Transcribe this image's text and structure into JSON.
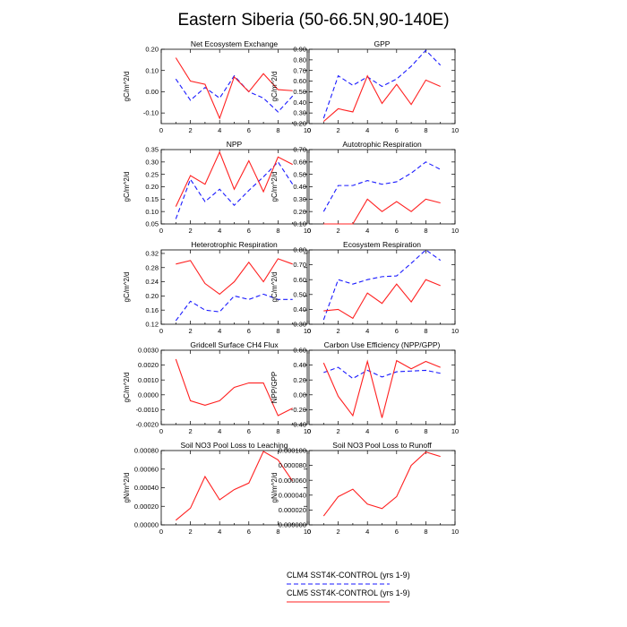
{
  "title": "Eastern Siberia (50-66.5N,90-140E)",
  "legend": [
    {
      "label": "CLM4 SST4K-CONTROL (yrs 1-9)",
      "color": "#1a1aff",
      "dash": true
    },
    {
      "label": "CLM5 SST4K-CONTROL (yrs 1-9)",
      "color": "#ff2020",
      "dash": false
    }
  ],
  "chart_data": [
    {
      "type": "line",
      "title": "Net Ecosystem Exchange",
      "ylabel": "gC/m^2/d",
      "xlim": [
        0,
        10
      ],
      "ylim": [
        -0.15,
        0.2
      ],
      "xticks": [
        "0",
        "2",
        "4",
        "6",
        "8",
        "10"
      ],
      "yticks": [
        {
          "v": -0.1,
          "t": "-0.10"
        },
        {
          "v": 0,
          "t": "0.00"
        },
        {
          "v": 0.1,
          "t": "0.10"
        },
        {
          "v": 0.2,
          "t": "0.20"
        }
      ],
      "x": [
        1,
        2,
        3,
        4,
        5,
        6,
        7,
        8,
        9
      ],
      "series": [
        {
          "name": "CLM4 SST4K-CONTROL (yrs 1-9)",
          "values": [
            0.06,
            -0.04,
            0.02,
            -0.03,
            0.075,
            0.0,
            -0.03,
            -0.095,
            -0.02
          ]
        },
        {
          "name": "CLM5 SST4K-CONTROL (yrs 1-9)",
          "values": [
            0.16,
            0.05,
            0.035,
            -0.125,
            0.07,
            0.0,
            0.085,
            0.01,
            0.005
          ]
        }
      ]
    },
    {
      "type": "line",
      "title": "GPP",
      "ylabel": "gC/m^2/d",
      "xlim": [
        0,
        10
      ],
      "ylim": [
        0.2,
        0.9
      ],
      "xticks": [
        "0",
        "2",
        "4",
        "6",
        "8",
        "10"
      ],
      "yticks": [
        {
          "v": 0.2,
          "t": "0.20"
        },
        {
          "v": 0.3,
          "t": "0.30"
        },
        {
          "v": 0.4,
          "t": "0.40"
        },
        {
          "v": 0.5,
          "t": "0.50"
        },
        {
          "v": 0.6,
          "t": "0.60"
        },
        {
          "v": 0.7,
          "t": "0.70"
        },
        {
          "v": 0.8,
          "t": "0.80"
        },
        {
          "v": 0.9,
          "t": "0.90"
        }
      ],
      "x": [
        1,
        2,
        3,
        4,
        5,
        6,
        7,
        8,
        9
      ],
      "series": [
        {
          "name": "CLM4 SST4K-CONTROL (yrs 1-9)",
          "values": [
            0.25,
            0.65,
            0.56,
            0.64,
            0.55,
            0.62,
            0.74,
            0.89,
            0.75
          ]
        },
        {
          "name": "CLM5 SST4K-CONTROL (yrs 1-9)",
          "values": [
            0.22,
            0.34,
            0.31,
            0.65,
            0.39,
            0.57,
            0.38,
            0.61,
            0.55
          ]
        }
      ]
    },
    {
      "type": "line",
      "title": "NPP",
      "ylabel": "gC/m^2/d",
      "xlim": [
        0,
        10
      ],
      "ylim": [
        0.05,
        0.35
      ],
      "xticks": [
        "0",
        "2",
        "4",
        "6",
        "8",
        "10"
      ],
      "yticks": [
        {
          "v": 0.05,
          "t": "0.05"
        },
        {
          "v": 0.1,
          "t": "0.10"
        },
        {
          "v": 0.15,
          "t": "0.15"
        },
        {
          "v": 0.2,
          "t": "0.20"
        },
        {
          "v": 0.25,
          "t": "0.25"
        },
        {
          "v": 0.3,
          "t": "0.30"
        },
        {
          "v": 0.35,
          "t": "0.35"
        }
      ],
      "x": [
        1,
        2,
        3,
        4,
        5,
        6,
        7,
        8,
        9
      ],
      "series": [
        {
          "name": "CLM4 SST4K-CONTROL (yrs 1-9)",
          "values": [
            0.07,
            0.23,
            0.14,
            0.19,
            0.125,
            0.185,
            0.24,
            0.3,
            0.21
          ]
        },
        {
          "name": "CLM5 SST4K-CONTROL (yrs 1-9)",
          "values": [
            0.12,
            0.245,
            0.21,
            0.34,
            0.19,
            0.305,
            0.18,
            0.32,
            0.29
          ]
        }
      ]
    },
    {
      "type": "line",
      "title": "Autotrophic Respiration",
      "ylabel": "gC/m^2/d",
      "xlim": [
        0,
        10
      ],
      "ylim": [
        0.1,
        0.7
      ],
      "xticks": [
        "0",
        "2",
        "4",
        "6",
        "8",
        "10"
      ],
      "yticks": [
        {
          "v": 0.1,
          "t": "0.10"
        },
        {
          "v": 0.2,
          "t": "0.20"
        },
        {
          "v": 0.3,
          "t": "0.30"
        },
        {
          "v": 0.4,
          "t": "0.40"
        },
        {
          "v": 0.5,
          "t": "0.50"
        },
        {
          "v": 0.6,
          "t": "0.60"
        },
        {
          "v": 0.7,
          "t": "0.70"
        }
      ],
      "x": [
        1,
        2,
        3,
        4,
        5,
        6,
        7,
        8,
        9
      ],
      "series": [
        {
          "name": "CLM4 SST4K-CONTROL (yrs 1-9)",
          "values": [
            0.2,
            0.41,
            0.41,
            0.45,
            0.42,
            0.44,
            0.51,
            0.6,
            0.54
          ]
        },
        {
          "name": "CLM5 SST4K-CONTROL (yrs 1-9)",
          "values": [
            0.1,
            0.1,
            0.1,
            0.3,
            0.2,
            0.28,
            0.2,
            0.3,
            0.27
          ]
        }
      ]
    },
    {
      "type": "line",
      "title": "Heterotrophic Respiration",
      "ylabel": "gC/m^2/d",
      "xlim": [
        0,
        10
      ],
      "ylim": [
        0.12,
        0.33
      ],
      "xticks": [
        "0",
        "2",
        "4",
        "6",
        "8",
        "10"
      ],
      "yticks": [
        {
          "v": 0.12,
          "t": "0.12"
        },
        {
          "v": 0.16,
          "t": "0.16"
        },
        {
          "v": 0.2,
          "t": "0.20"
        },
        {
          "v": 0.24,
          "t": "0.24"
        },
        {
          "v": 0.28,
          "t": "0.28"
        },
        {
          "v": 0.32,
          "t": "0.32"
        }
      ],
      "x": [
        1,
        2,
        3,
        4,
        5,
        6,
        7,
        8,
        9
      ],
      "series": [
        {
          "name": "CLM4 SST4K-CONTROL (yrs 1-9)",
          "values": [
            0.13,
            0.185,
            0.16,
            0.155,
            0.2,
            0.19,
            0.205,
            0.19,
            0.19
          ]
        },
        {
          "name": "CLM5 SST4K-CONTROL (yrs 1-9)",
          "values": [
            0.29,
            0.3,
            0.235,
            0.205,
            0.24,
            0.295,
            0.24,
            0.305,
            0.29
          ]
        }
      ]
    },
    {
      "type": "line",
      "title": "Ecosystem Respiration",
      "ylabel": "gC/m^2/d",
      "xlim": [
        0,
        10
      ],
      "ylim": [
        0.3,
        0.8
      ],
      "xticks": [
        "0",
        "2",
        "4",
        "6",
        "8",
        "10"
      ],
      "yticks": [
        {
          "v": 0.3,
          "t": "0.30"
        },
        {
          "v": 0.4,
          "t": "0.40"
        },
        {
          "v": 0.5,
          "t": "0.50"
        },
        {
          "v": 0.6,
          "t": "0.60"
        },
        {
          "v": 0.7,
          "t": "0.70"
        },
        {
          "v": 0.8,
          "t": "0.80"
        }
      ],
      "x": [
        1,
        2,
        3,
        4,
        5,
        6,
        7,
        8,
        9
      ],
      "series": [
        {
          "name": "CLM4 SST4K-CONTROL (yrs 1-9)",
          "values": [
            0.33,
            0.6,
            0.57,
            0.6,
            0.62,
            0.625,
            0.71,
            0.8,
            0.73
          ]
        },
        {
          "name": "CLM5 SST4K-CONTROL (yrs 1-9)",
          "values": [
            0.39,
            0.4,
            0.34,
            0.51,
            0.44,
            0.57,
            0.45,
            0.6,
            0.56
          ]
        }
      ]
    },
    {
      "type": "line",
      "title": "Gridcell Surface CH4 Flux",
      "ylabel": "gC/m^2/d",
      "xlim": [
        0,
        10
      ],
      "ylim": [
        -0.002,
        0.003
      ],
      "xticks": [
        "0",
        "2",
        "4",
        "6",
        "8",
        "10"
      ],
      "yticks": [
        {
          "v": -0.002,
          "t": "-0.0020"
        },
        {
          "v": -0.001,
          "t": "-0.0010"
        },
        {
          "v": 0,
          "t": "0.0000"
        },
        {
          "v": 0.001,
          "t": "0.0010"
        },
        {
          "v": 0.002,
          "t": "0.0020"
        },
        {
          "v": 0.003,
          "t": "0.0030"
        }
      ],
      "x": [
        1,
        2,
        3,
        4,
        5,
        6,
        7,
        8,
        9
      ],
      "series": [
        {
          "name": "CLM5 SST4K-CONTROL (yrs 1-9)",
          "values": [
            0.0024,
            -0.0004,
            -0.0007,
            -0.0004,
            0.0005,
            0.0008,
            0.0008,
            -0.0014,
            -0.0009
          ]
        }
      ]
    },
    {
      "type": "line",
      "title": "Carbon Use Efficiency (NPP/GPP)",
      "ylabel": "NPP/GPP",
      "xlim": [
        0,
        10
      ],
      "ylim": [
        -0.4,
        0.6
      ],
      "xticks": [
        "0",
        "2",
        "4",
        "6",
        "8",
        "10"
      ],
      "yticks": [
        {
          "v": -0.4,
          "t": "-0.40"
        },
        {
          "v": -0.2,
          "t": "-0.20"
        },
        {
          "v": 0,
          "t": "0.00"
        },
        {
          "v": 0.2,
          "t": "0.20"
        },
        {
          "v": 0.4,
          "t": "0.40"
        },
        {
          "v": 0.6,
          "t": "0.60"
        }
      ],
      "x": [
        1,
        2,
        3,
        4,
        5,
        6,
        7,
        8,
        9
      ],
      "series": [
        {
          "name": "CLM4 SST4K-CONTROL (yrs 1-9)",
          "values": [
            0.3,
            0.37,
            0.22,
            0.33,
            0.24,
            0.31,
            0.32,
            0.33,
            0.29
          ]
        },
        {
          "name": "CLM5 SST4K-CONTROL (yrs 1-9)",
          "values": [
            0.43,
            -0.02,
            -0.28,
            0.45,
            -0.31,
            0.46,
            0.35,
            0.45,
            0.37
          ]
        }
      ]
    },
    {
      "type": "line",
      "title": "Soil NO3 Pool Loss to Leaching",
      "ylabel": "gN/m^2/d",
      "xlim": [
        0,
        10
      ],
      "ylim": [
        0,
        0.0008
      ],
      "xticks": [
        "0",
        "2",
        "4",
        "6",
        "8",
        "10"
      ],
      "yticks": [
        {
          "v": 0,
          "t": "0.00000"
        },
        {
          "v": 0.0002,
          "t": "0.00020"
        },
        {
          "v": 0.0004,
          "t": "0.00040"
        },
        {
          "v": 0.0006,
          "t": "0.00060"
        },
        {
          "v": 0.0008,
          "t": "0.00080"
        }
      ],
      "x": [
        1,
        2,
        3,
        4,
        5,
        6,
        7,
        8,
        9
      ],
      "series": [
        {
          "name": "CLM5 SST4K-CONTROL (yrs 1-9)",
          "values": [
            5e-05,
            0.00018,
            0.00052,
            0.00027,
            0.00038,
            0.00045,
            0.00079,
            0.0007,
            0.00047
          ]
        }
      ]
    },
    {
      "type": "line",
      "title": "Soil NO3 Pool Loss to Runoff",
      "ylabel": "gN/m^2/d",
      "xlim": [
        0,
        10
      ],
      "ylim": [
        0,
        0.0001
      ],
      "xticks": [
        "0",
        "2",
        "4",
        "6",
        "8",
        "10"
      ],
      "yticks": [
        {
          "v": 0,
          "t": "0.000000"
        },
        {
          "v": 2e-05,
          "t": "0.000020"
        },
        {
          "v": 4e-05,
          "t": "0.000040"
        },
        {
          "v": 6e-05,
          "t": "0.000060"
        },
        {
          "v": 8e-05,
          "t": "0.000080"
        },
        {
          "v": 0.0001,
          "t": "0.000100"
        }
      ],
      "x": [
        1,
        2,
        3,
        4,
        5,
        6,
        7,
        8,
        9
      ],
      "series": [
        {
          "name": "CLM5 SST4K-CONTROL (yrs 1-9)",
          "values": [
            1.2e-05,
            3.8e-05,
            4.8e-05,
            2.8e-05,
            2.2e-05,
            3.8e-05,
            8e-05,
            9.8e-05,
            9.2e-05
          ]
        }
      ]
    }
  ]
}
